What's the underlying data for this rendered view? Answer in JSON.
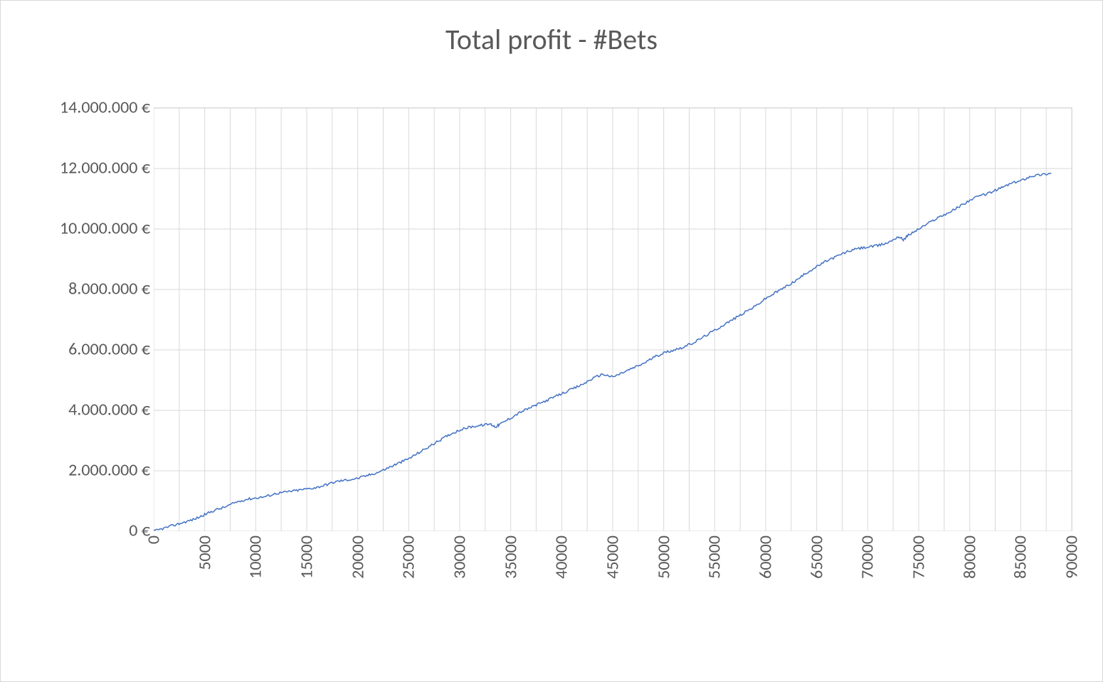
{
  "chart": {
    "type": "line",
    "title": "Total profit - #Bets",
    "title_fontsize": 40,
    "title_color": "#595959",
    "background_color": "#ffffff",
    "border_color": "#d9d9d9",
    "grid_color": "#d9d9d9",
    "axis_label_color": "#595959",
    "axis_label_fontsize": 24,
    "line_color": "#4472c4",
    "line_width": 1.5,
    "xlim": [
      0,
      90000
    ],
    "ylim": [
      0,
      14000000
    ],
    "x_ticks": [
      0,
      5000,
      10000,
      15000,
      20000,
      25000,
      30000,
      35000,
      40000,
      45000,
      50000,
      55000,
      60000,
      65000,
      70000,
      75000,
      80000,
      85000,
      90000
    ],
    "x_tick_labels": [
      "0",
      "5000",
      "10000",
      "15000",
      "20000",
      "25000",
      "30000",
      "35000",
      "40000",
      "45000",
      "50000",
      "55000",
      "60000",
      "65000",
      "70000",
      "75000",
      "80000",
      "85000",
      "90000"
    ],
    "y_ticks": [
      0,
      2000000,
      4000000,
      6000000,
      8000000,
      10000000,
      12000000,
      14000000
    ],
    "y_tick_labels": [
      "0 €",
      "2.000.000 €",
      "4.000.000 €",
      "6.000.000 €",
      "8.000.000 €",
      "10.000.000 €",
      "12.000.000 €",
      "14.000.000 €"
    ],
    "x_minor_grid_subdivisions": 2,
    "series": [
      {
        "name": "Total profit",
        "x": [
          0,
          1000,
          2000,
          3000,
          4000,
          5000,
          6000,
          7000,
          8000,
          9000,
          10000,
          11000,
          12000,
          13000,
          14000,
          15000,
          16000,
          17000,
          18000,
          19000,
          20000,
          21000,
          22000,
          23000,
          24000,
          25000,
          26000,
          27000,
          28000,
          29000,
          30000,
          31000,
          32000,
          33000,
          33500,
          34000,
          35000,
          36000,
          37000,
          38000,
          39000,
          40000,
          41000,
          42000,
          43000,
          44000,
          45000,
          46000,
          47000,
          48000,
          49000,
          50000,
          51000,
          52000,
          53000,
          54000,
          55000,
          56000,
          57000,
          58000,
          59000,
          60000,
          61000,
          62000,
          63000,
          64000,
          65000,
          66000,
          67000,
          68000,
          69000,
          70000,
          71000,
          72000,
          73000,
          73500,
          74000,
          75000,
          76000,
          77000,
          78000,
          79000,
          80000,
          81000,
          82000,
          83000,
          84000,
          85000,
          86000,
          87000,
          88000
        ],
        "y": [
          0,
          100000,
          200000,
          300000,
          400000,
          550000,
          700000,
          800000,
          950000,
          1050000,
          1100000,
          1150000,
          1250000,
          1300000,
          1350000,
          1400000,
          1450000,
          1550000,
          1650000,
          1700000,
          1750000,
          1850000,
          1950000,
          2100000,
          2250000,
          2400000,
          2600000,
          2800000,
          3000000,
          3200000,
          3350000,
          3450000,
          3500000,
          3550000,
          3450000,
          3550000,
          3750000,
          3950000,
          4100000,
          4250000,
          4400000,
          4550000,
          4700000,
          4850000,
          5050000,
          5200000,
          5100000,
          5250000,
          5400000,
          5550000,
          5750000,
          5900000,
          6000000,
          6100000,
          6250000,
          6450000,
          6650000,
          6850000,
          7050000,
          7250000,
          7450000,
          7700000,
          7900000,
          8100000,
          8300000,
          8550000,
          8750000,
          8950000,
          9100000,
          9250000,
          9350000,
          9400000,
          9450000,
          9550000,
          9750000,
          9650000,
          9800000,
          10000000,
          10200000,
          10400000,
          10550000,
          10750000,
          10950000,
          11100000,
          11200000,
          11350000,
          11500000,
          11600000,
          11750000,
          11800000,
          11850000
        ]
      }
    ]
  }
}
